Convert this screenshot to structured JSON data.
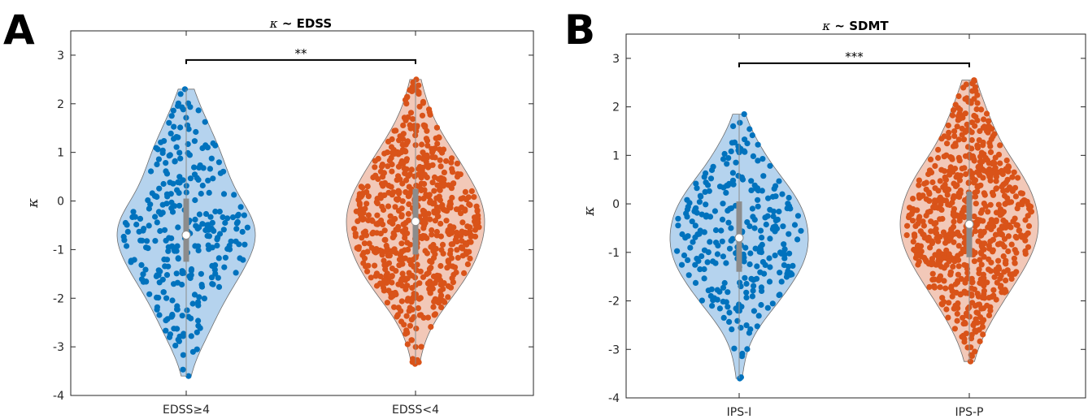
{
  "chart_data": [
    {
      "type": "violin",
      "panel_label": "A",
      "title_symbol": "κ",
      "title_rest": " ~ EDSS",
      "ylabel": "κ",
      "ylim": [
        -4,
        3.5
      ],
      "yticks": [
        "-4",
        "-3",
        "-2",
        "-1",
        "0",
        "1",
        "2",
        "3"
      ],
      "ytick_values": [
        -4,
        -3,
        -2,
        -1,
        0,
        1,
        2,
        3
      ],
      "categories": [
        "EDSS≥4",
        "EDSS<4"
      ],
      "significance": {
        "between": [
          0,
          1
        ],
        "y": 2.9,
        "label": "**"
      },
      "groups": [
        {
          "name": "EDSS≥4",
          "color": "#0072BD",
          "fill": "#b5d3ee",
          "median": -0.7,
          "q1": -1.25,
          "q3": 0.05,
          "min": -3.6,
          "max": 2.3,
          "n": 300,
          "mode": -0.75
        },
        {
          "name": "EDSS<4",
          "color": "#D95319",
          "fill": "#f2c8b8",
          "median": -0.42,
          "q1": -1.1,
          "q3": 0.25,
          "min": -3.35,
          "max": 2.5,
          "n": 650,
          "mode": -0.4
        }
      ]
    },
    {
      "type": "violin",
      "panel_label": "B",
      "title_symbol": "κ",
      "title_rest": " ~ SDMT",
      "ylabel": "κ",
      "ylim": [
        -4,
        3.5
      ],
      "yticks": [
        "-4",
        "-3",
        "-2",
        "-1",
        "0",
        "1",
        "2",
        "3"
      ],
      "ytick_values": [
        -4,
        -3,
        -2,
        -1,
        0,
        1,
        2,
        3
      ],
      "categories": [
        "IPS-I",
        "IPS-P"
      ],
      "significance": {
        "between": [
          0,
          1
        ],
        "y": 2.9,
        "label": "***"
      },
      "groups": [
        {
          "name": "IPS-I",
          "color": "#0072BD",
          "fill": "#b5d3ee",
          "median": -0.7,
          "q1": -1.4,
          "q3": 0.05,
          "min": -3.6,
          "max": 1.85,
          "n": 280,
          "mode": -0.65
        },
        {
          "name": "IPS-P",
          "color": "#D95319",
          "fill": "#f2c8b8",
          "median": -0.42,
          "q1": -1.1,
          "q3": 0.25,
          "min": -3.25,
          "max": 2.55,
          "n": 700,
          "mode": -0.45
        }
      ]
    }
  ]
}
